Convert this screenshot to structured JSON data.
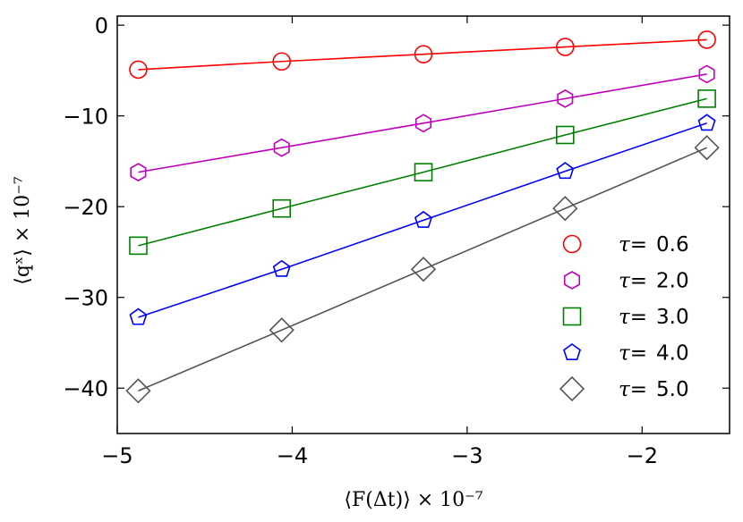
{
  "chart_data": {
    "type": "line",
    "title": "",
    "xlabel": "⟨F(Δt)⟩ × 10⁻⁷",
    "ylabel": "⟨qˣ⟩ × 10⁻⁷",
    "xlim": [
      -5,
      -1.5
    ],
    "ylim": [
      -45,
      1
    ],
    "xticks": [
      -5,
      -4,
      -3,
      -2
    ],
    "xtick_labels": [
      "−5",
      "−4",
      "−3",
      "−2"
    ],
    "yticks": [
      0,
      -10,
      -20,
      -30,
      -40
    ],
    "ytick_labels": [
      "0",
      "−10",
      "−20",
      "−30",
      "−40"
    ],
    "grid": false,
    "legend_position": "lower-right",
    "x": [
      -4.88,
      -4.06,
      -3.25,
      -2.44,
      -1.63
    ],
    "series": [
      {
        "name": "0.6",
        "label_prefix": "τ=",
        "marker": "circle",
        "color": "#ff0000",
        "values": [
          -4.9,
          -4.0,
          -3.2,
          -2.4,
          -1.6
        ]
      },
      {
        "name": "2.0",
        "label_prefix": "τ=",
        "marker": "hexagon",
        "color": "#bf00bf",
        "values": [
          -16.2,
          -13.5,
          -10.8,
          -8.1,
          -5.4
        ]
      },
      {
        "name": "3.0",
        "label_prefix": "τ=",
        "marker": "square",
        "color": "#008000",
        "values": [
          -24.3,
          -20.2,
          -16.2,
          -12.1,
          -8.1
        ]
      },
      {
        "name": "4.0",
        "label_prefix": "τ=",
        "marker": "pentagon",
        "color": "#0000ff",
        "values": [
          -32.2,
          -26.9,
          -21.5,
          -16.1,
          -10.8
        ]
      },
      {
        "name": "5.0",
        "label_prefix": "τ=",
        "marker": "diamond",
        "color": "#555555",
        "values": [
          -40.3,
          -33.6,
          -26.9,
          -20.2,
          -13.5
        ]
      }
    ]
  }
}
